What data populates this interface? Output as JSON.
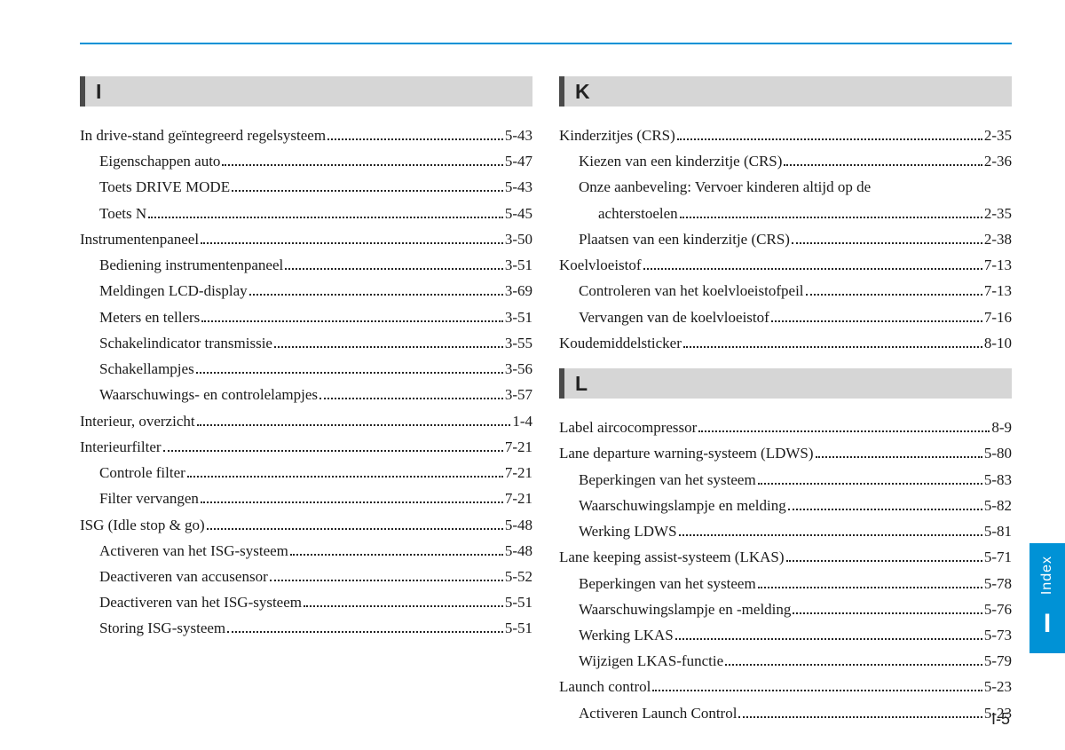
{
  "accent_color": "#0092d6",
  "header_bg": "#d6d6d6",
  "header_border": "#4a4a4a",
  "page_ref": "I-5",
  "tab": {
    "label": "Index",
    "letter": "I"
  },
  "left": {
    "sections": [
      {
        "letter": "I",
        "entries": [
          {
            "label": "In drive-stand geïntegreerd regelsysteem",
            "page": "5-43",
            "indent": 0
          },
          {
            "label": "Eigenschappen auto",
            "page": "5-47",
            "indent": 1
          },
          {
            "label": "Toets DRIVE MODE",
            "page": "5-43",
            "indent": 1
          },
          {
            "label": "Toets N",
            "page": "5-45",
            "indent": 1
          },
          {
            "label": "Instrumentenpaneel",
            "page": "3-50",
            "indent": 0
          },
          {
            "label": "Bediening instrumentenpaneel",
            "page": "3-51",
            "indent": 1
          },
          {
            "label": "Meldingen LCD-display",
            "page": "3-69",
            "indent": 1
          },
          {
            "label": "Meters en tellers",
            "page": "3-51",
            "indent": 1
          },
          {
            "label": "Schakelindicator transmissie",
            "page": "3-55",
            "indent": 1
          },
          {
            "label": "Schakellampjes",
            "page": "3-56",
            "indent": 1
          },
          {
            "label": "Waarschuwings- en controlelampjes",
            "page": "3-57",
            "indent": 1
          },
          {
            "label": "Interieur, overzicht",
            "page": "1-4",
            "indent": 0
          },
          {
            "label": "Interieurfilter",
            "page": "7-21",
            "indent": 0
          },
          {
            "label": "Controle filter",
            "page": "7-21",
            "indent": 1
          },
          {
            "label": "Filter vervangen",
            "page": "7-21",
            "indent": 1
          },
          {
            "label": "ISG (Idle stop & go)",
            "page": "5-48",
            "indent": 0
          },
          {
            "label": "Activeren van het ISG-systeem",
            "page": "5-48",
            "indent": 1
          },
          {
            "label": "Deactiveren van accusensor",
            "page": "5-52",
            "indent": 1
          },
          {
            "label": "Deactiveren van het ISG-systeem",
            "page": "5-51",
            "indent": 1
          },
          {
            "label": "Storing ISG-systeem",
            "page": "5-51",
            "indent": 1
          }
        ]
      }
    ]
  },
  "right": {
    "sections": [
      {
        "letter": "K",
        "entries": [
          {
            "label": "Kinderzitjes (CRS)",
            "page": "2-35",
            "indent": 0
          },
          {
            "label": "Kiezen van een kinderzitje (CRS)",
            "page": "2-36",
            "indent": 1
          },
          {
            "label": "Onze aanbeveling: Vervoer kinderen altijd op de",
            "label2": "achterstoelen",
            "page": "2-35",
            "indent": 1,
            "wrap": true
          },
          {
            "label": "Plaatsen van een kinderzitje (CRS)",
            "page": "2-38",
            "indent": 1
          },
          {
            "label": "Koelvloeistof",
            "page": "7-13",
            "indent": 0
          },
          {
            "label": "Controleren van het koelvloeistofpeil",
            "page": "7-13",
            "indent": 1
          },
          {
            "label": "Vervangen van de koelvloeistof",
            "page": "7-16",
            "indent": 1
          },
          {
            "label": "Koudemiddelsticker",
            "page": "8-10",
            "indent": 0
          }
        ]
      },
      {
        "letter": "L",
        "entries": [
          {
            "label": "Label aircocompressor",
            "page": "8-9",
            "indent": 0
          },
          {
            "label": "Lane departure warning-systeem (LDWS)",
            "page": "5-80",
            "indent": 0
          },
          {
            "label": "Beperkingen van het systeem",
            "page": "5-83",
            "indent": 1
          },
          {
            "label": "Waarschuwingslampje en melding",
            "page": "5-82",
            "indent": 1
          },
          {
            "label": "Werking LDWS",
            "page": "5-81",
            "indent": 1
          },
          {
            "label": "Lane keeping assist-systeem (LKAS)",
            "page": "5-71",
            "indent": 0
          },
          {
            "label": "Beperkingen van het systeem",
            "page": "5-78",
            "indent": 1
          },
          {
            "label": "Waarschuwingslampje en -melding",
            "page": "5-76",
            "indent": 1
          },
          {
            "label": "Werking LKAS",
            "page": "5-73",
            "indent": 1
          },
          {
            "label": "Wijzigen LKAS-functie",
            "page": "5-79",
            "indent": 1
          },
          {
            "label": "Launch control",
            "page": "5-23",
            "indent": 0
          },
          {
            "label": "Activeren Launch Control",
            "page": "5-23",
            "indent": 1
          }
        ]
      }
    ]
  }
}
